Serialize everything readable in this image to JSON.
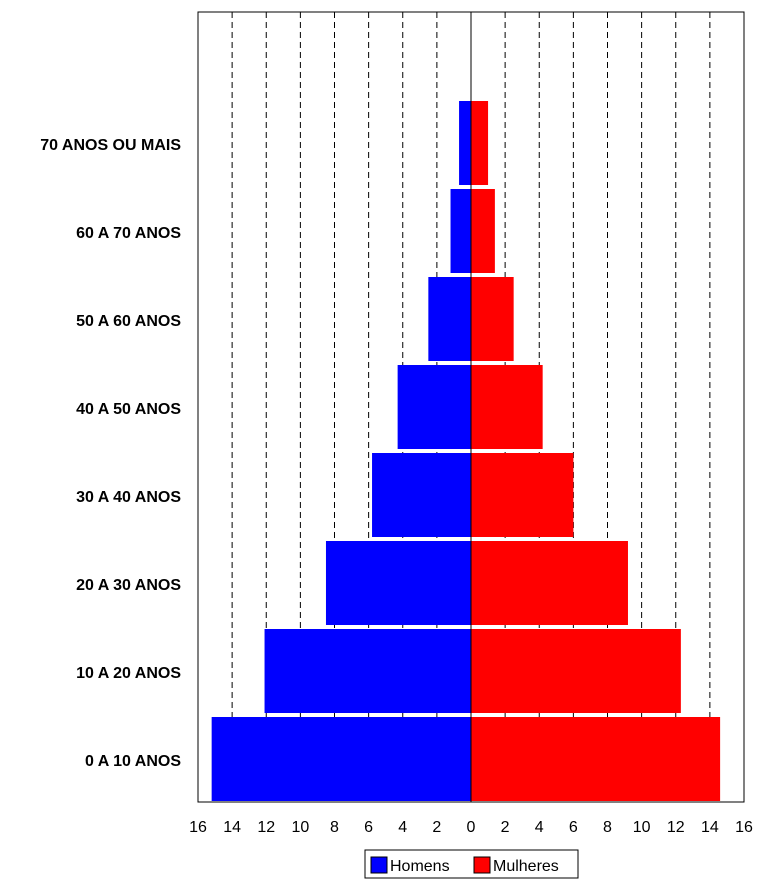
{
  "chart_data": {
    "type": "bar",
    "orientation": "horizontal",
    "layout": "population-pyramid",
    "title": "",
    "xlabel": "",
    "ylabel": "",
    "categories": [
      "0 A 10 ANOS",
      "10 A 20 ANOS",
      "20 A 30 ANOS",
      "30 A 40 ANOS",
      "40 A 50 ANOS",
      "50 A 60 ANOS",
      "60 A 70 ANOS",
      "70 ANOS OU MAIS"
    ],
    "series": [
      {
        "name": "Homens",
        "color": "#0000ff",
        "side": "left",
        "values": [
          15.2,
          12.1,
          8.5,
          5.8,
          4.3,
          2.5,
          1.2,
          0.7
        ]
      },
      {
        "name": "Mulheres",
        "color": "#ff0000",
        "side": "right",
        "values": [
          14.6,
          12.3,
          9.2,
          6.0,
          4.2,
          2.5,
          1.4,
          1.0
        ]
      }
    ],
    "xlim": [
      -16,
      16
    ],
    "x_tick_values": [
      -16,
      -14,
      -12,
      -10,
      -8,
      -6,
      -4,
      -2,
      0,
      2,
      4,
      6,
      8,
      10,
      12,
      14,
      16
    ],
    "x_tick_labels": [
      "16",
      "14",
      "12",
      "10",
      "8",
      "6",
      "4",
      "2",
      "0",
      "2",
      "4",
      "6",
      "8",
      "10",
      "12",
      "14",
      "16"
    ],
    "grid": "vertical dashed",
    "legend_position": "bottom-center",
    "legend": [
      "Homens",
      "Mulheres"
    ]
  }
}
